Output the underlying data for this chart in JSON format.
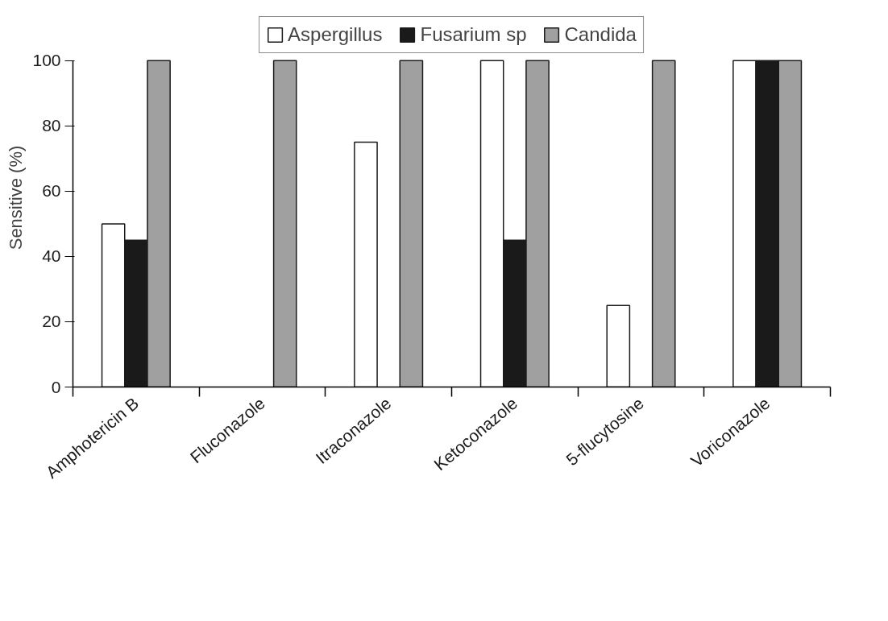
{
  "chart_data": {
    "type": "bar",
    "ylabel": "Sensitive (%)",
    "categories": [
      "Amphotericin B",
      "Fluconazole",
      "Itraconazole",
      "Ketoconazole",
      "5-flucytosine",
      "Voriconazole"
    ],
    "series": [
      {
        "name": "Aspergillus",
        "color": "#ffffff",
        "values": [
          50,
          0,
          75,
          100,
          25,
          100
        ]
      },
      {
        "name": "Fusarium sp",
        "color": "#1a1a1a",
        "values": [
          45,
          0,
          0,
          45,
          0,
          100
        ]
      },
      {
        "name": "Candida",
        "color": "#a0a0a0",
        "values": [
          100,
          100,
          100,
          100,
          100,
          100
        ]
      }
    ],
    "ylim": [
      0,
      100
    ],
    "yticks": [
      0,
      20,
      40,
      60,
      80,
      100
    ],
    "grid": false,
    "legend": "top"
  }
}
